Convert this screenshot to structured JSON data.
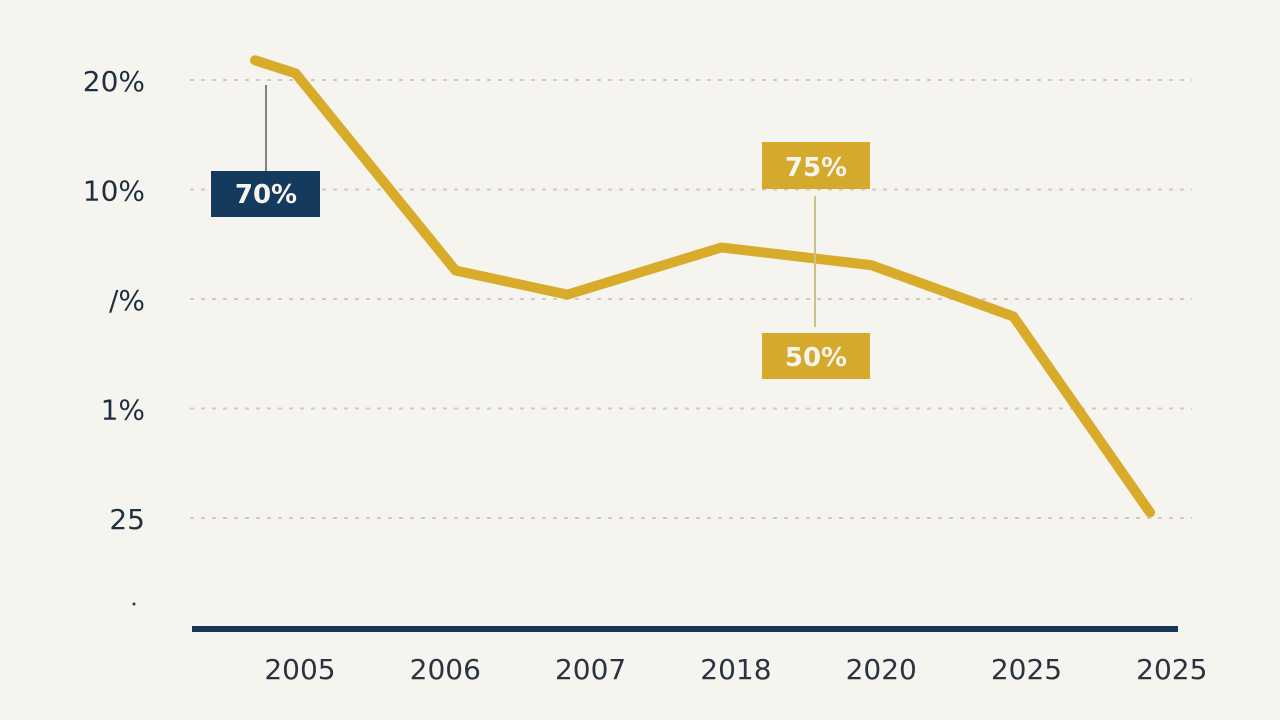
{
  "chart_data": {
    "type": "line",
    "title": "",
    "xlabel": "",
    "ylabel": "",
    "grid": true,
    "y_ticks": [
      "25",
      "1%",
      "/%",
      "10%",
      "20%"
    ],
    "x_ticks": [
      "2005",
      "2006",
      "2007",
      "2018",
      "2020",
      "2025",
      "2025"
    ],
    "series": [
      {
        "color": "#d9ab2a",
        "points": [
          {
            "x": -0.31,
            "y": 4.18
          },
          {
            "x": -0.03,
            "y": 4.06
          },
          {
            "x": 1.07,
            "y": 2.26
          },
          {
            "x": 1.84,
            "y": 2.04
          },
          {
            "x": 2.9,
            "y": 2.47
          },
          {
            "x": 3.93,
            "y": 2.31
          },
          {
            "x": 4.91,
            "y": 1.84
          },
          {
            "x": 5.85,
            "y": 0.05
          }
        ]
      }
    ],
    "annotations": [
      {
        "text": "70%",
        "color": "#143a5e"
      },
      {
        "text": "75%",
        "color": "#d4a92c"
      },
      {
        "text": "50%",
        "color": "#d4a92c"
      }
    ],
    "axis_color": "#17375a"
  }
}
